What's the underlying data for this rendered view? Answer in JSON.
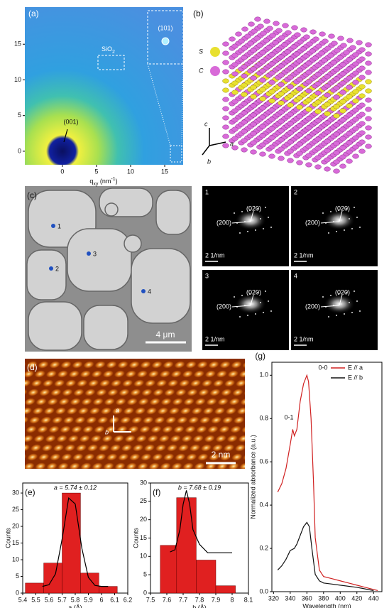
{
  "panels": {
    "a": {
      "label": "(a)",
      "xlabel": [
        "q",
        "xy",
        " (nm",
        "-1",
        ")"
      ],
      "xlim": [
        -5.5,
        17.7
      ],
      "ylim": [
        -1.9,
        20.2
      ],
      "xticks": [
        0,
        5,
        10,
        15
      ],
      "yticks": [
        0,
        5,
        10,
        15
      ],
      "sio2": [
        "SiO",
        "2"
      ],
      "peak101": "(101)",
      "peak001": "(001)"
    },
    "b": {
      "label": "(b)",
      "legend": [
        "S",
        "C"
      ],
      "colors": [
        "#e8e030",
        "#d86ad8"
      ],
      "axes": [
        "c",
        "a",
        "b"
      ]
    },
    "c": {
      "label": "(c)",
      "points": [
        "1",
        "2",
        "3",
        "4"
      ],
      "scale_bar": "4 μm",
      "patterns": [
        "1",
        "2",
        "3",
        "4"
      ],
      "pattern_texts": [
        "(200)",
        "(020)"
      ],
      "pattern_scale": "2 1/nm"
    },
    "d": {
      "label": "(d)",
      "axes": [
        "a",
        "b"
      ],
      "scale_bar": "2 nm"
    }
  },
  "chart_data": [
    {
      "type": "histogram",
      "label": "(e)",
      "annotation": "a = 5.74 ± 0.12",
      "xlabel": "a (Å)",
      "ylabel": "Counts",
      "bins": [
        5.42,
        5.56,
        5.7,
        5.84,
        5.98,
        6.12
      ],
      "values": [
        3,
        9,
        30,
        6,
        2
      ],
      "color": "#e02020",
      "fit": {
        "x": [
          5.55,
          5.6,
          5.65,
          5.7,
          5.75,
          5.8,
          5.85,
          5.9,
          5.95,
          6.0,
          6.05
        ],
        "values": [
          2.0,
          2.5,
          5.8,
          16.2,
          28.5,
          26.7,
          13.5,
          4.7,
          2.3,
          2.0,
          2.0
        ]
      },
      "xlim": [
        5.4,
        6.2
      ],
      "xticks": [
        5.4,
        5.5,
        5.6,
        5.7,
        5.8,
        5.9,
        6.0,
        6.1,
        6.2
      ],
      "ylim": [
        0,
        33
      ],
      "yticks": [
        0,
        5,
        10,
        15,
        20,
        25,
        30
      ]
    },
    {
      "type": "histogram",
      "label": "(f)",
      "annotation": "b = 7.68 ± 0.19",
      "xlabel": "b (Å)",
      "ylabel": "Counts",
      "bins": [
        7.56,
        7.66,
        7.78,
        7.9,
        8.02
      ],
      "values": [
        13,
        26,
        9,
        2
      ],
      "color": "#e02020",
      "fit": {
        "x": [
          7.62,
          7.65,
          7.68,
          7.7,
          7.72,
          7.74,
          7.76,
          7.8,
          7.85,
          7.95,
          8.0
        ],
        "values": [
          11.2,
          11.8,
          17.3,
          24.2,
          28,
          24.2,
          17.3,
          13.3,
          11,
          11,
          11
        ]
      },
      "xlim": [
        7.5,
        8.1
      ],
      "xticks": [
        7.5,
        7.6,
        7.7,
        7.8,
        7.9,
        8.0,
        8.1
      ],
      "ylim": [
        0,
        30
      ],
      "yticks": [
        0,
        5,
        10,
        15,
        20,
        25,
        30
      ]
    },
    {
      "type": "line",
      "label": "(g)",
      "xlabel": "Wavelength (nm)",
      "ylabel": "Normalized absorbance (a.u.)",
      "annotations": [
        "0-0",
        "0-1"
      ],
      "series": [
        {
          "name": "E // a",
          "color": "#d02020",
          "x": [
            325,
            330,
            335,
            340,
            343,
            345,
            348,
            352,
            356,
            360,
            362,
            365,
            368,
            370,
            375,
            380,
            390,
            400,
            410,
            420,
            430,
            440,
            445
          ],
          "values": [
            0.46,
            0.5,
            0.57,
            0.68,
            0.75,
            0.72,
            0.75,
            0.88,
            0.96,
            1.0,
            0.97,
            0.8,
            0.5,
            0.25,
            0.1,
            0.07,
            0.06,
            0.05,
            0.04,
            0.03,
            0.02,
            0.01,
            0.005
          ]
        },
        {
          "name": "E // b",
          "color": "#111111",
          "x": [
            325,
            330,
            335,
            340,
            345,
            348,
            352,
            356,
            360,
            363,
            366,
            370,
            375,
            380,
            390,
            400,
            420,
            440
          ],
          "values": [
            0.1,
            0.12,
            0.15,
            0.19,
            0.2,
            0.22,
            0.26,
            0.3,
            0.32,
            0.3,
            0.2,
            0.08,
            0.05,
            0.04,
            0.035,
            0.03,
            0.02,
            0.005
          ]
        }
      ],
      "xlim": [
        318,
        450
      ],
      "xticks": [
        320,
        340,
        360,
        380,
        400,
        420,
        440
      ],
      "ylim": [
        0,
        1.06
      ],
      "yticks": [
        {
          "value": 0,
          "label": "0.0"
        },
        0.2,
        0.4,
        0.6,
        0.8,
        {
          "value": 1.0,
          "label": "1.0"
        }
      ]
    }
  ]
}
